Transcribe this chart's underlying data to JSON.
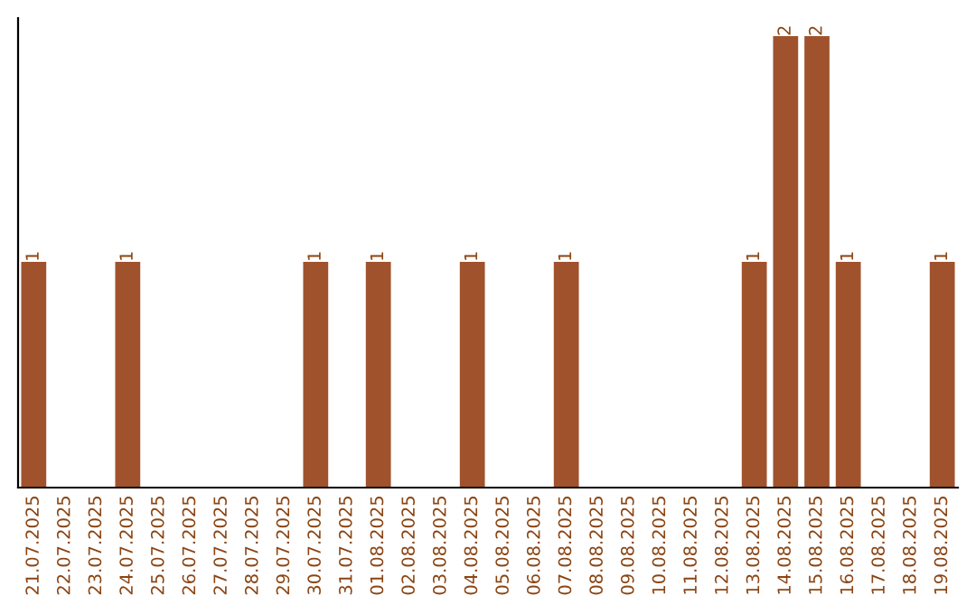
{
  "chart_data": {
    "type": "bar",
    "categories": [
      "21.07.2025",
      "22.07.2025",
      "23.07.2025",
      "24.07.2025",
      "25.07.2025",
      "26.07.2025",
      "27.07.2025",
      "28.07.2025",
      "29.07.2025",
      "30.07.2025",
      "31.07.2025",
      "01.08.2025",
      "02.08.2025",
      "03.08.2025",
      "04.08.2025",
      "05.08.2025",
      "06.08.2025",
      "07.08.2025",
      "08.08.2025",
      "09.08.2025",
      "10.08.2025",
      "11.08.2025",
      "12.08.2025",
      "13.08.2025",
      "14.08.2025",
      "15.08.2025",
      "16.08.2025",
      "17.08.2025",
      "18.08.2025",
      "19.08.2025"
    ],
    "values": [
      1,
      0,
      0,
      1,
      0,
      0,
      0,
      0,
      0,
      1,
      0,
      1,
      0,
      0,
      1,
      0,
      0,
      1,
      0,
      0,
      0,
      0,
      0,
      1,
      2,
      2,
      1,
      0,
      0,
      1
    ],
    "value_labels": [
      "1",
      null,
      null,
      "1",
      null,
      null,
      null,
      null,
      null,
      "1",
      null,
      "1",
      null,
      null,
      "1",
      null,
      null,
      "1",
      null,
      null,
      null,
      null,
      null,
      "1",
      "2",
      "2",
      "1",
      null,
      null,
      "1"
    ],
    "color": "#a0522d",
    "ylim": [
      0,
      2.08
    ],
    "tick_labels": "x",
    "grid": false,
    "legend": false
  }
}
